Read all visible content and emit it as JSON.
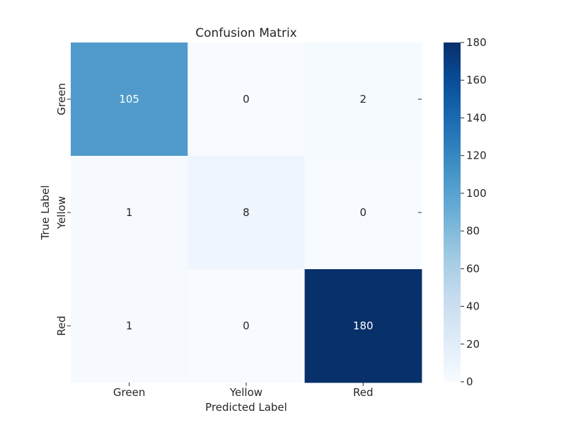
{
  "chart_data": {
    "type": "heatmap",
    "title": "Confusion Matrix",
    "xlabel": "Predicted Label",
    "ylabel": "True Label",
    "x_categories": [
      "Green",
      "Yellow",
      "Red"
    ],
    "y_categories": [
      "Green",
      "Yellow",
      "Red"
    ],
    "values": [
      [
        105,
        0,
        2
      ],
      [
        1,
        8,
        0
      ],
      [
        1,
        0,
        180
      ]
    ],
    "colormap": "Blues",
    "colorbar": {
      "min": 0,
      "max": 180,
      "ticks": [
        "0",
        "20",
        "40",
        "60",
        "80",
        "100",
        "120",
        "140",
        "160",
        "180"
      ]
    },
    "colors": {
      "low": "#f7fbff",
      "high": "#08306b"
    }
  }
}
